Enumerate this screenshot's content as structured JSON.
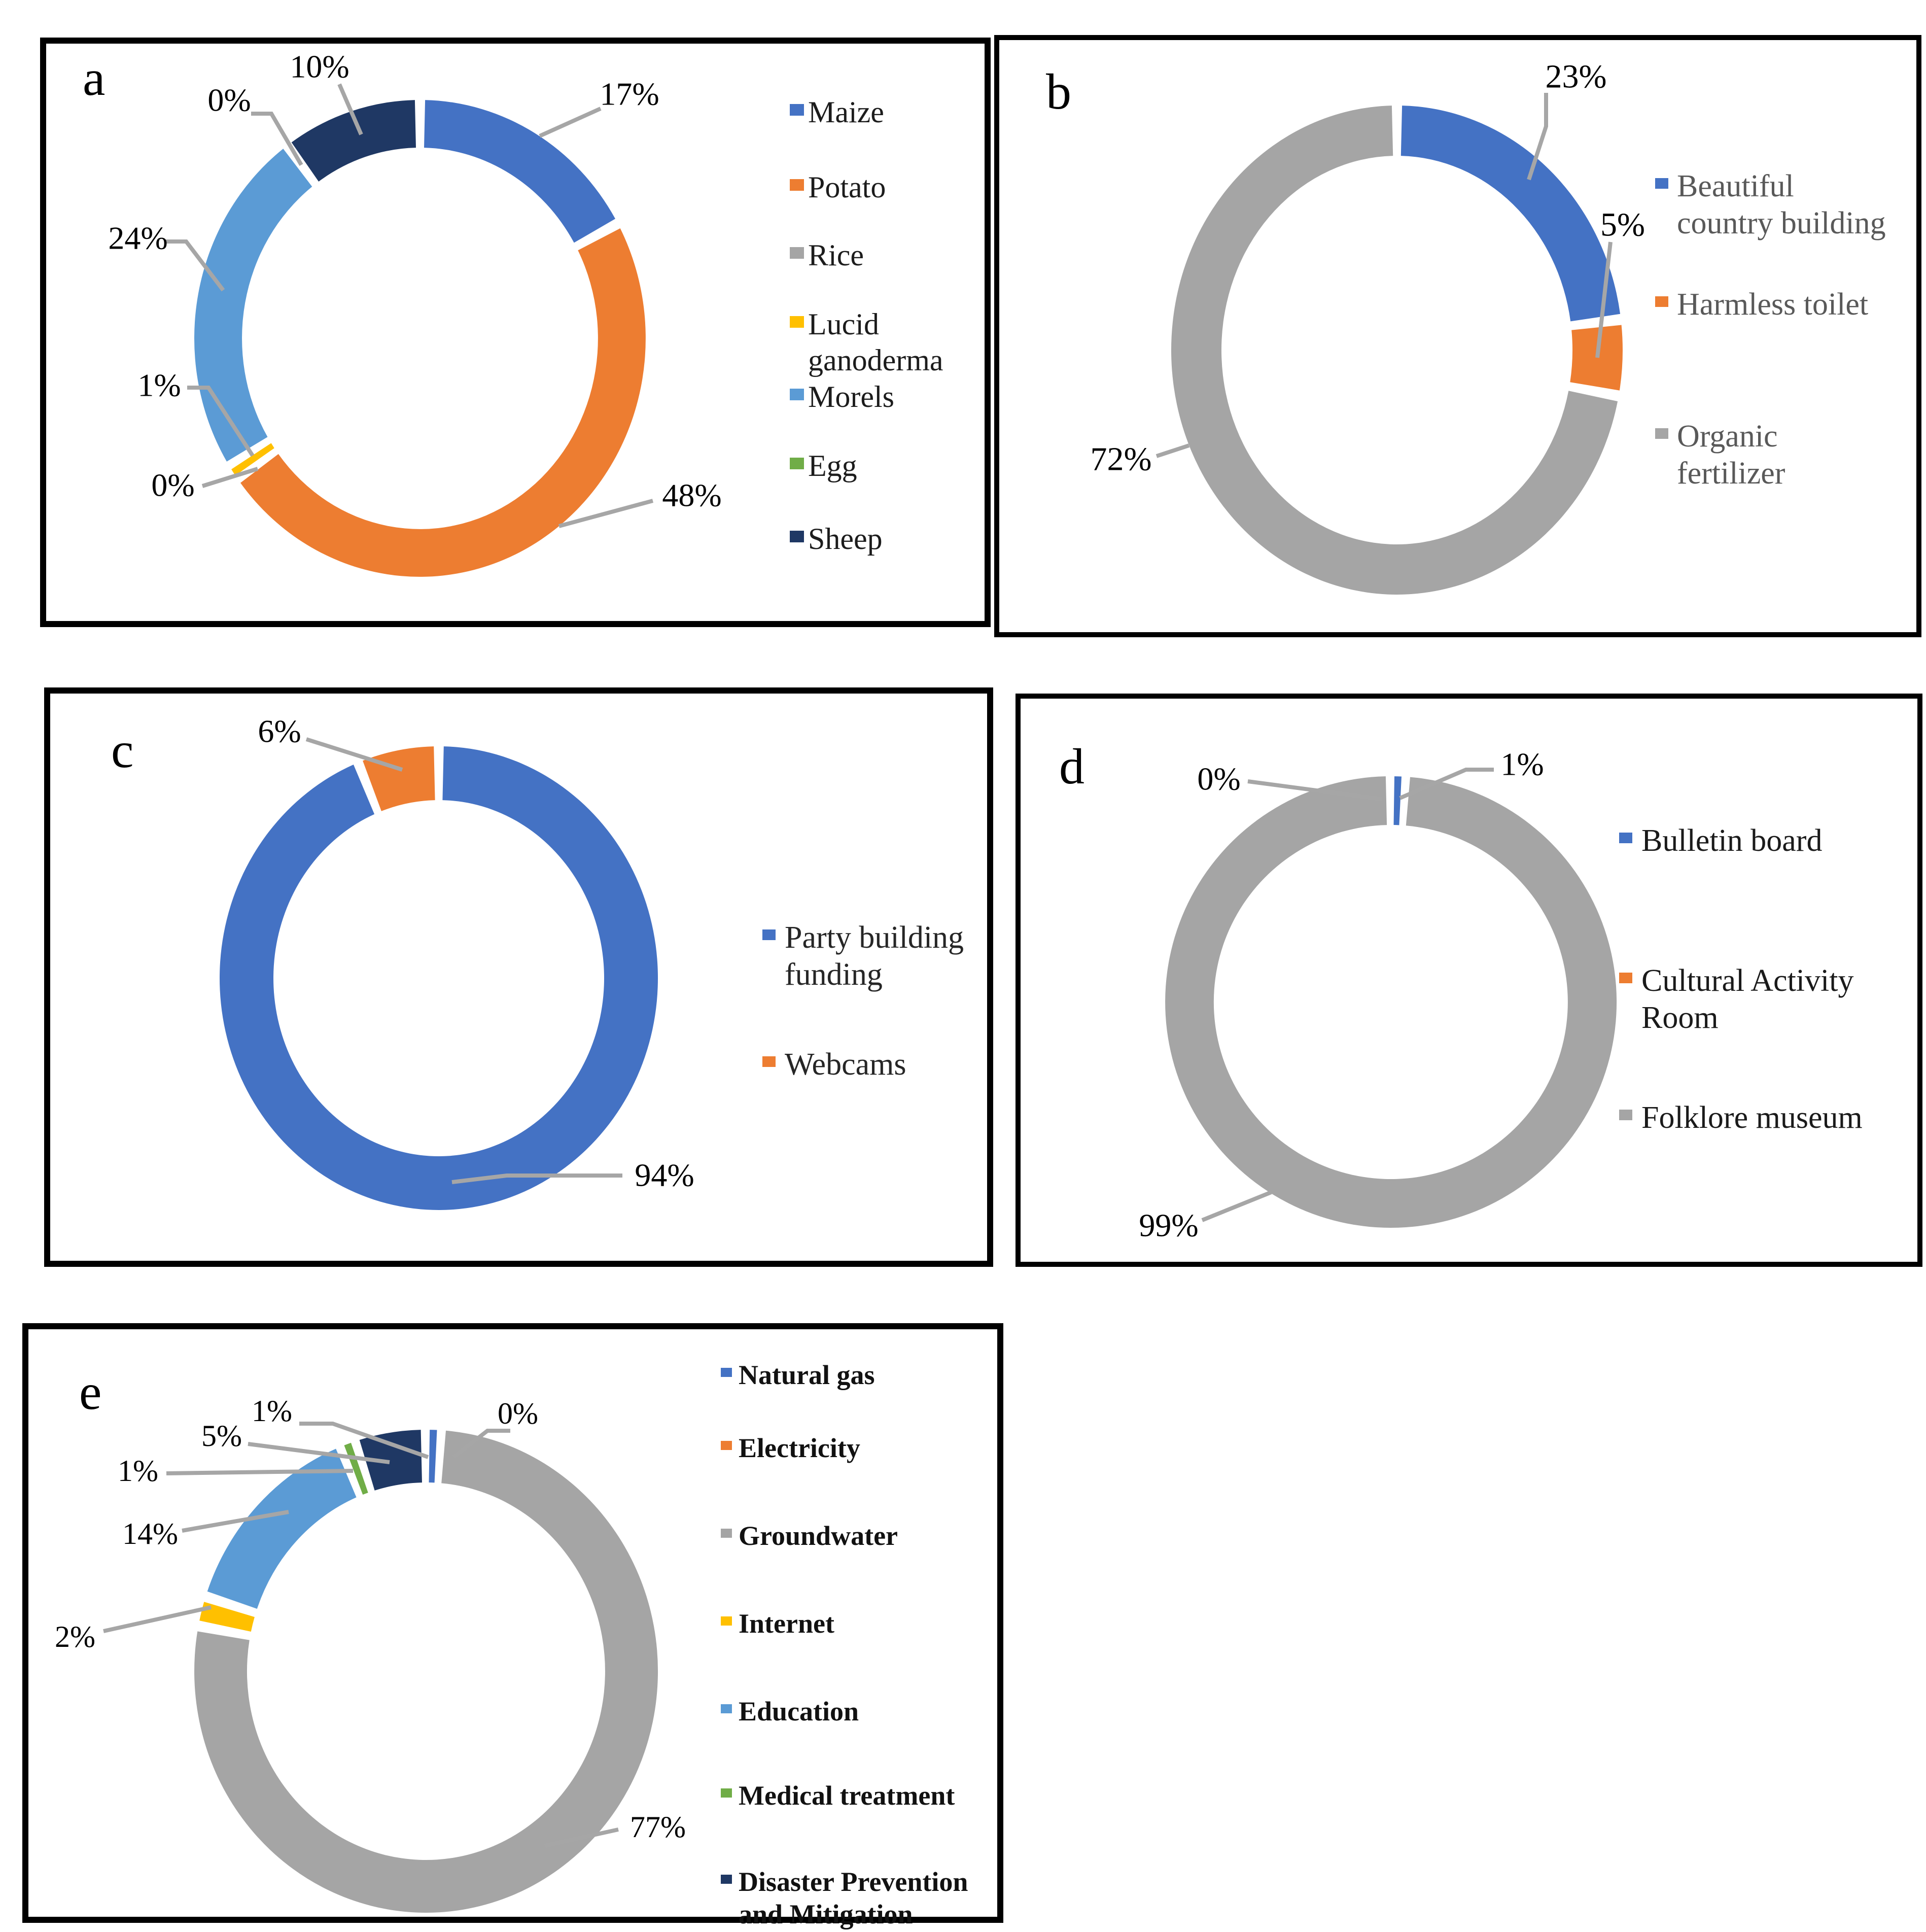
{
  "styles": {
    "background": "#ffffff",
    "panel_border_color": "#000000",
    "leader_line_color": "#A6A6A6",
    "data_label_color": "#000000"
  },
  "chart_data": [
    {
      "id": "a",
      "panel_label": "a",
      "type": "donut",
      "legend_position": "right",
      "legend_text_color": "#1c1c1c",
      "categories": [
        "Maize",
        "Potato",
        "Rice",
        "Lucid ganoderma",
        "Morels",
        "Egg",
        "Sheep"
      ],
      "values": [
        17,
        48,
        0,
        1,
        24,
        0,
        10
      ],
      "data_labels": [
        "17%",
        "48%",
        "0%",
        "1%",
        "24%",
        "0%",
        "10%"
      ],
      "colors": [
        "#4472C4",
        "#ED7D31",
        "#A5A5A5",
        "#FFC000",
        "#5B9BD5",
        "#70AD47",
        "#1F3864"
      ]
    },
    {
      "id": "b",
      "panel_label": "b",
      "type": "donut",
      "legend_position": "right",
      "legend_text_color": "#595959",
      "categories": [
        "Beautiful country building",
        "Harmless toilet",
        "Organic fertilizer"
      ],
      "values": [
        23,
        5,
        72
      ],
      "data_labels": [
        "23%",
        "5%",
        "72%"
      ],
      "colors": [
        "#4472C4",
        "#ED7D31",
        "#A5A5A5"
      ]
    },
    {
      "id": "c",
      "panel_label": "c",
      "type": "donut",
      "legend_position": "right",
      "legend_text_color": "#262626",
      "categories": [
        "Party building funding",
        "Webcams"
      ],
      "values": [
        94,
        6
      ],
      "data_labels": [
        "94%",
        "6%"
      ],
      "colors": [
        "#4472C4",
        "#ED7D31"
      ]
    },
    {
      "id": "d",
      "panel_label": "d",
      "type": "donut",
      "legend_position": "right",
      "legend_text_color": "#1a1a1a",
      "categories": [
        "Bulletin board",
        "Cultural Activity Room",
        "Folklore museum"
      ],
      "values": [
        1,
        0,
        99
      ],
      "data_labels": [
        "1%",
        "0%",
        "99%"
      ],
      "colors": [
        "#4472C4",
        "#ED7D31",
        "#A5A5A5"
      ]
    },
    {
      "id": "e",
      "panel_label": "e",
      "type": "donut",
      "legend_position": "right",
      "legend_text_color": "#111111",
      "categories": [
        "Natural gas",
        "Electricity",
        "Groundwater",
        "Internet",
        "Education",
        "Medical treatment",
        "Disaster Prevention and Mitigation"
      ],
      "values": [
        1,
        0,
        77,
        2,
        14,
        1,
        5
      ],
      "data_labels": [
        "1%",
        "0%",
        "77%",
        "2%",
        "14%",
        "1%",
        "5%"
      ],
      "colors": [
        "#4472C4",
        "#ED7D31",
        "#A5A5A5",
        "#FFC000",
        "#5B9BD5",
        "#70AD47",
        "#1F3864"
      ]
    }
  ]
}
